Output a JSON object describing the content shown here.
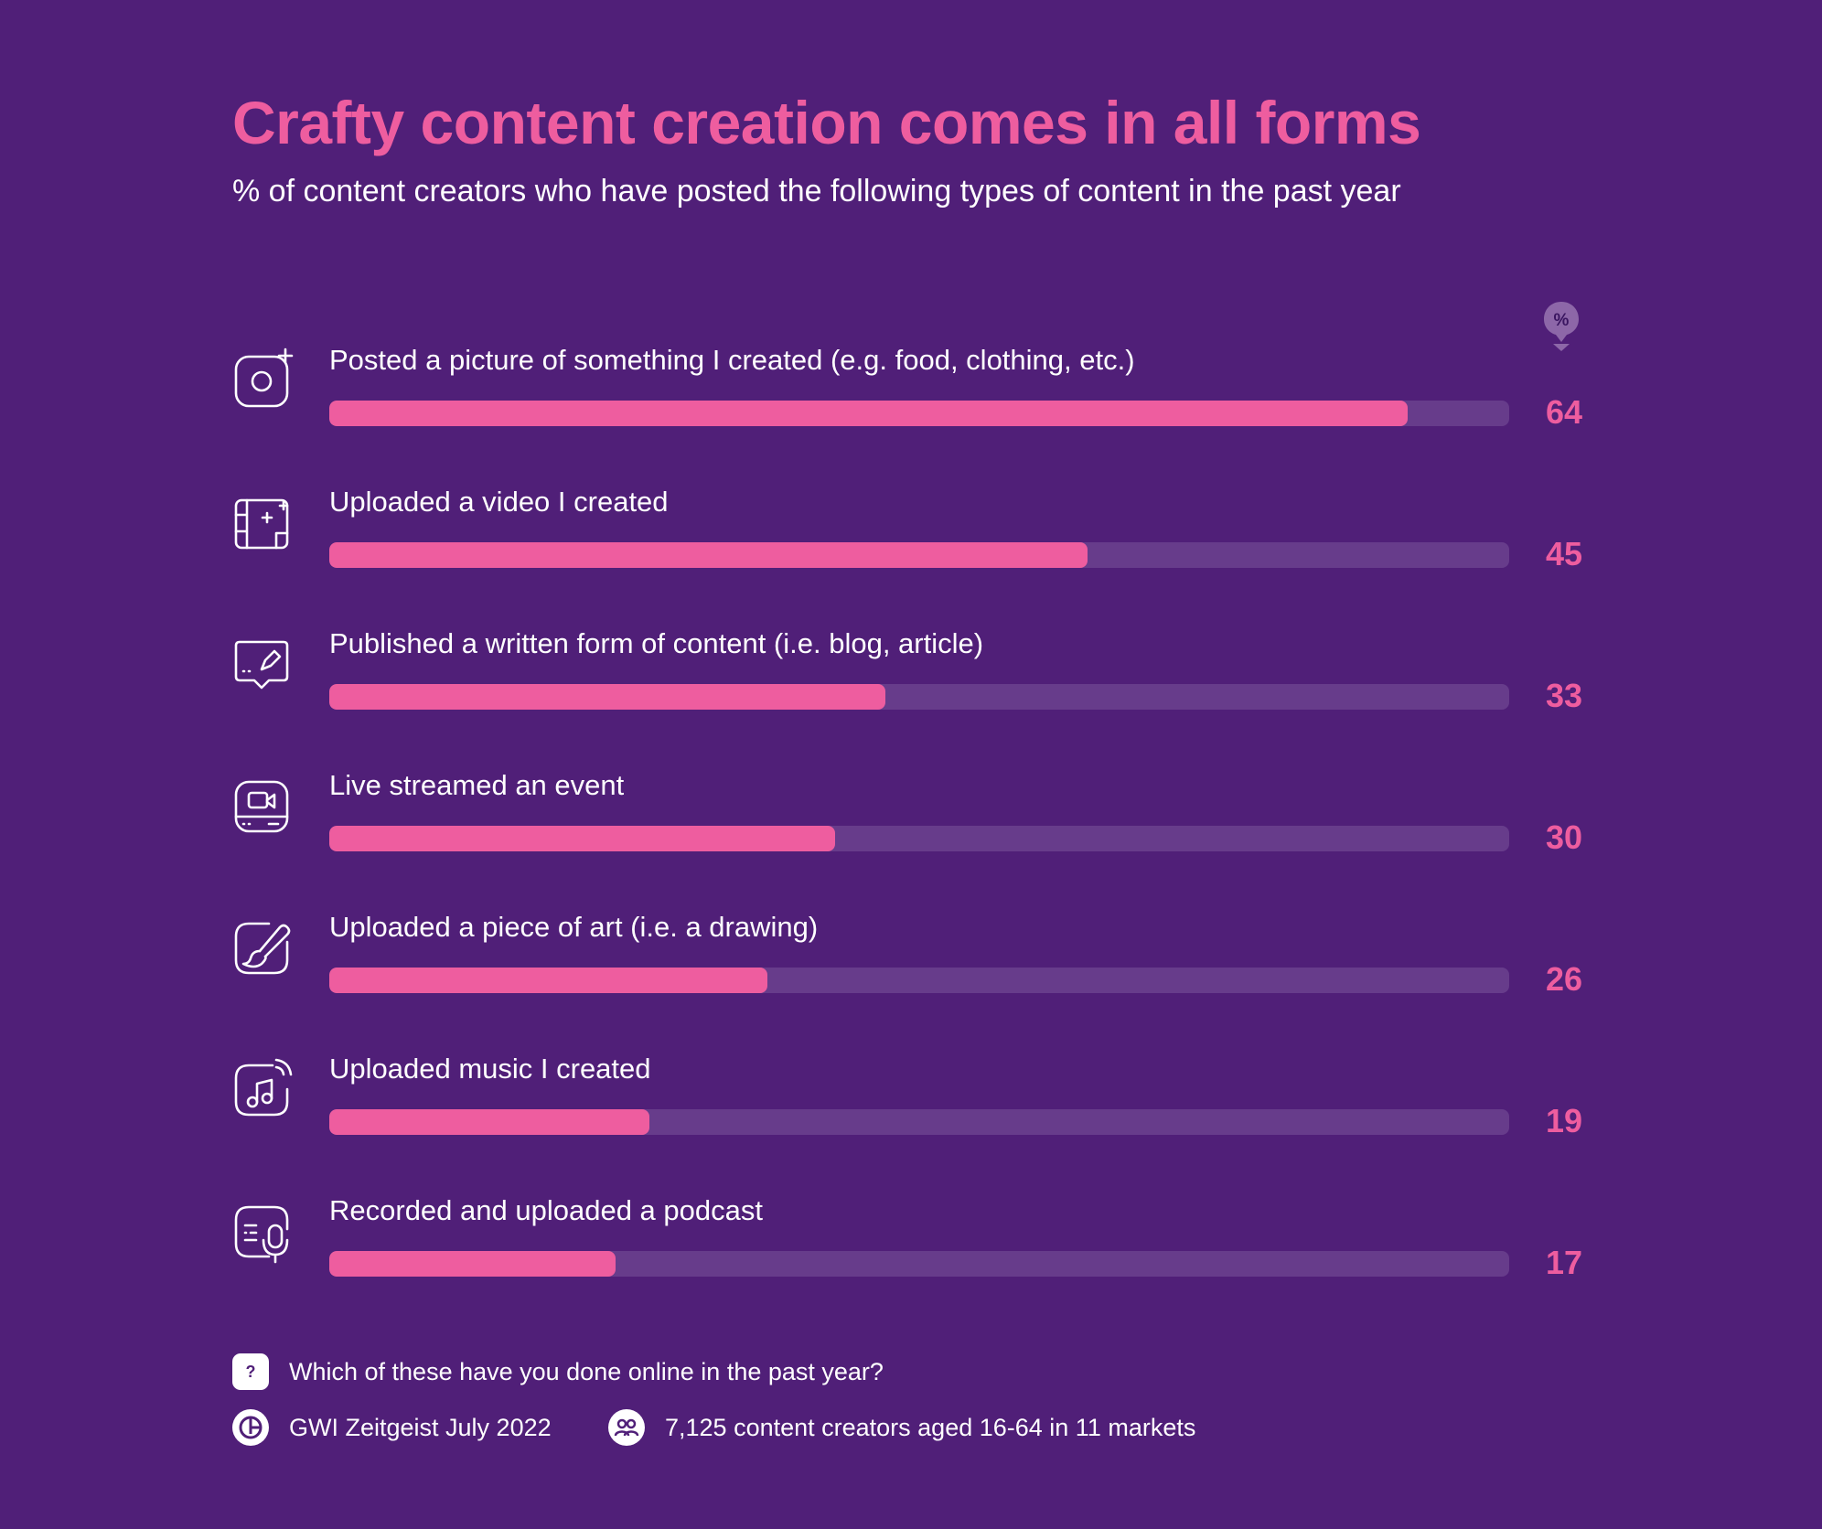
{
  "header": {
    "title": "Crafty content creation comes in all forms",
    "subtitle": "% of content creators who have posted the following types of content in the past year",
    "unit_badge": "%"
  },
  "colors": {
    "background": "#501f78",
    "accent": "#ee5d9f",
    "track": "#673c8b",
    "text": "#ffffff"
  },
  "chart_data": {
    "type": "bar",
    "orientation": "horizontal",
    "title": "Crafty content creation comes in all forms",
    "subtitle": "% of content creators who have posted the following types of content in the past year",
    "unit": "%",
    "xlim": [
      0,
      70
    ],
    "categories": [
      "Posted a picture of something I created (e.g. food, clothing, etc.)",
      "Uploaded a video I created",
      "Published a written form of content (i.e. blog, article)",
      "Live streamed an event",
      "Uploaded a piece of art (i.e. a drawing)",
      "Uploaded music I created",
      "Recorded and uploaded a podcast"
    ],
    "values": [
      64,
      45,
      33,
      30,
      26,
      19,
      17
    ],
    "icons": [
      "camera-plus-icon",
      "video-sparkle-icon",
      "chat-pencil-icon",
      "live-stream-icon",
      "paintbrush-icon",
      "music-note-icon",
      "podcast-mic-icon"
    ]
  },
  "footer": {
    "question": "Which of these have you done online in the past year?",
    "source": "GWI Zeitgeist July 2022",
    "sample": "7,125 content creators aged 16-64 in 11 markets",
    "question_icon": "question-icon",
    "source_icon": "gwi-logo-icon",
    "sample_icon": "people-icon"
  }
}
